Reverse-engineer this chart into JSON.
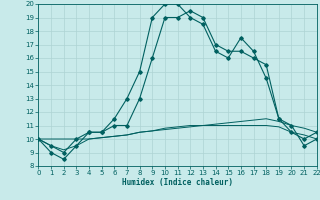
{
  "xlabel": "Humidex (Indice chaleur)",
  "x_values": [
    0,
    1,
    2,
    3,
    4,
    5,
    6,
    7,
    8,
    9,
    10,
    11,
    12,
    13,
    14,
    15,
    16,
    17,
    18,
    19,
    20,
    21,
    22
  ],
  "line1": [
    10,
    9,
    8.5,
    9.5,
    10.5,
    10.5,
    11.5,
    13,
    15,
    19,
    20,
    20,
    19,
    18.5,
    16.5,
    16,
    17.5,
    16.5,
    14.5,
    11.5,
    11,
    9.5,
    10
  ],
  "line2": [
    10,
    9.5,
    9,
    10,
    10.5,
    10.5,
    11,
    11,
    13,
    16,
    19,
    19,
    19.5,
    19,
    17,
    16.5,
    16.5,
    16,
    15.5,
    11.5,
    10.5,
    10,
    10.5
  ],
  "line3": [
    10,
    10,
    10,
    10,
    10,
    10.1,
    10.2,
    10.3,
    10.5,
    10.6,
    10.7,
    10.8,
    10.9,
    11.0,
    11.1,
    11.2,
    11.3,
    11.4,
    11.5,
    11.3,
    11.0,
    10.8,
    10.5
  ],
  "line4": [
    10,
    9.5,
    9.2,
    9.5,
    10,
    10.1,
    10.2,
    10.3,
    10.5,
    10.6,
    10.8,
    10.9,
    11.0,
    11.0,
    11.0,
    11.0,
    11.0,
    11.0,
    11.0,
    10.9,
    10.5,
    10.3,
    10.0
  ],
  "line_color": "#006060",
  "bg_color": "#c8eaea",
  "grid_color": "#aed4d4",
  "xlim": [
    0,
    22
  ],
  "ylim": [
    8,
    20
  ],
  "yticks": [
    8,
    9,
    10,
    11,
    12,
    13,
    14,
    15,
    16,
    17,
    18,
    19,
    20
  ],
  "xticks": [
    0,
    1,
    2,
    3,
    4,
    5,
    6,
    7,
    8,
    9,
    10,
    11,
    12,
    13,
    14,
    15,
    16,
    17,
    18,
    19,
    20,
    21,
    22
  ]
}
